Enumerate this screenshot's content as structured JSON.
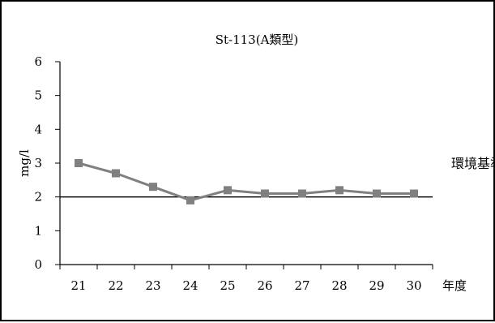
{
  "chart_data": {
    "type": "line",
    "title": "St-113(A類型)",
    "xlabel": "年度",
    "ylabel": "mg/l",
    "categories": [
      "21",
      "22",
      "23",
      "24",
      "25",
      "26",
      "27",
      "28",
      "29",
      "30"
    ],
    "yticks": [
      "0",
      "1",
      "2",
      "3",
      "4",
      "5",
      "6"
    ],
    "ylim": [
      0,
      6
    ],
    "grid": false,
    "series": [
      {
        "values": [
          3.0,
          2.7,
          2.3,
          1.9,
          2.2,
          2.1,
          2.1,
          2.2,
          2.1,
          2.1
        ]
      }
    ],
    "reference_line": {
      "value": 2,
      "label": "環境基準"
    },
    "colors": {
      "series": "#808080",
      "reference": "#000000",
      "axis": "#000000"
    }
  }
}
